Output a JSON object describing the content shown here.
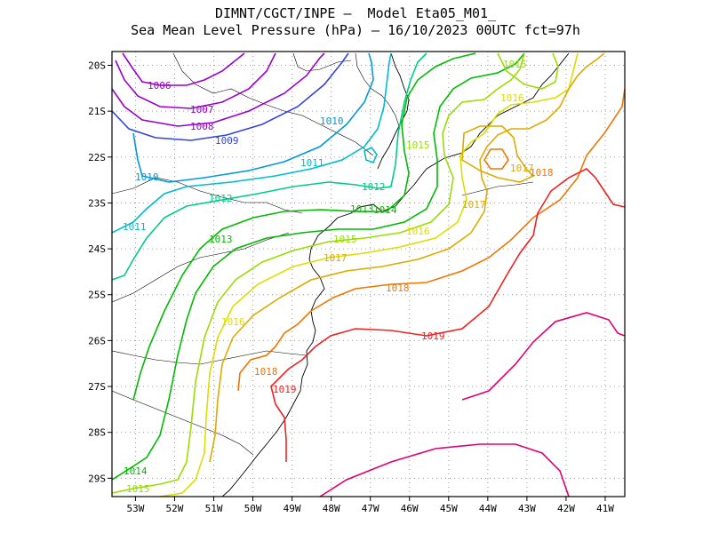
{
  "title": {
    "line1": "DIMNT/CGCT/INPE –  Model Eta05_M01_",
    "line2": "Sea Mean Level Pressure (hPa) – 16/10/2023 00UTC fct=97h"
  },
  "map": {
    "lon_range": [
      -53.6,
      -40.5
    ],
    "lat_range": [
      -29.4,
      -19.7
    ],
    "lon_ticks": [
      "53W",
      "52W",
      "51W",
      "50W",
      "49W",
      "48W",
      "47W",
      "46W",
      "45W",
      "44W",
      "43W",
      "42W",
      "41W"
    ],
    "lat_ticks": [
      "20S",
      "21S",
      "22S",
      "23S",
      "24S",
      "25S",
      "26S",
      "27S",
      "28S",
      "29S"
    ],
    "grid": "dotted",
    "contour_interval_hpa": 1,
    "contour_labels": [
      {
        "text": "1006",
        "color": "#9900cc"
      },
      {
        "text": "1007",
        "color": "#9900cc"
      },
      {
        "text": "1008",
        "color": "#9900cc"
      },
      {
        "text": "1009",
        "color": "#3344dd"
      },
      {
        "text": "1010",
        "color": "#0099dd"
      },
      {
        "text": "1010",
        "color": "#0099dd"
      },
      {
        "text": "1011",
        "color": "#00bbcc"
      },
      {
        "text": "1011",
        "color": "#00bbcc"
      },
      {
        "text": "1012",
        "color": "#00cc88"
      },
      {
        "text": "1012",
        "color": "#00cc88"
      },
      {
        "text": "1013",
        "color": "#00bb00"
      },
      {
        "text": "1013",
        "color": "#00bb00"
      },
      {
        "text": "1014",
        "color": "#00bb00"
      },
      {
        "text": "1014",
        "color": "#00bb00"
      },
      {
        "text": "1015",
        "color": "#99dd00"
      },
      {
        "text": "1015",
        "color": "#99dd00"
      },
      {
        "text": "1015",
        "color": "#99dd00"
      },
      {
        "text": "1015",
        "color": "#99dd00"
      },
      {
        "text": "1016",
        "color": "#dddd00"
      },
      {
        "text": "1016",
        "color": "#dddd00"
      },
      {
        "text": "1016",
        "color": "#dddd00"
      },
      {
        "text": "1017",
        "color": "#ddaa00"
      },
      {
        "text": "1017",
        "color": "#ddaa00"
      },
      {
        "text": "1017",
        "color": "#ddaa00"
      },
      {
        "text": "1018",
        "color": "#ee7700"
      },
      {
        "text": "1018",
        "color": "#ee7700"
      },
      {
        "text": "1018",
        "color": "#ee7700"
      },
      {
        "text": "1019",
        "color": "#ee2222"
      },
      {
        "text": "1019",
        "color": "#ee2222"
      }
    ],
    "contour_colors": {
      "1006": "#9900cc",
      "1007": "#9900cc",
      "1008": "#9900cc",
      "1009": "#3344dd",
      "1010": "#0099dd",
      "1011": "#00bbcc",
      "1012": "#00cc88",
      "1013": "#00bb00",
      "1014": "#00bb00",
      "1015": "#99dd00",
      "1016": "#dddd00",
      "1017": "#ddaa00",
      "1018": "#ee7700",
      "1019": "#ee2222",
      "1020": "#dd0077"
    }
  }
}
